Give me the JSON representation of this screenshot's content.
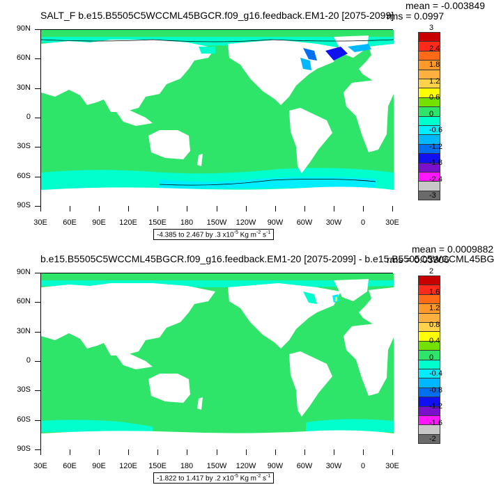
{
  "chart_data": [
    {
      "type": "heatmap",
      "projection": "cylindrical-equidistant",
      "title": "SALT_F b.e15.B5505C5WCCML45BGCR.f09_g16.feedback.EM1-20 [2075-2099]",
      "stats": {
        "mean": "mean = -0.003849",
        "rms": "rms = 0.0997"
      },
      "ylabels": [
        "90N",
        "60N",
        "30N",
        "0",
        "30S",
        "60S",
        "90S"
      ],
      "xlabels": [
        "30E",
        "60E",
        "90E",
        "120E",
        "150E",
        "180",
        "150W",
        "120W",
        "90W",
        "60W",
        "30W",
        "0",
        "30E"
      ],
      "range_text": "-4.385 to 2.467 by .3 x10",
      "range_exp": "-5",
      "units": "Kg m",
      "units_exp1": "-2",
      "units_tail": " s",
      "units_exp2": "-1",
      "colorbar": {
        "colors": [
          "#c80000",
          "#ff2a1a",
          "#ff6a18",
          "#ff9a2a",
          "#ffb040",
          "#ffd24a",
          "#ffff00",
          "#74e000",
          "#2ee56a",
          "#00ffcc",
          "#00eeff",
          "#00b8ff",
          "#0070f0",
          "#1010f0",
          "#7a10cc",
          "#ff18ff",
          "#c8c8c8",
          "#6a6a6a"
        ],
        "labels": [
          "3",
          "2.4",
          "1.8",
          "1.2",
          "0.6",
          "0",
          "-0.6",
          "-1.2",
          "-1.8",
          "-2.4",
          "-3"
        ],
        "cell_values": [
          3.3,
          2.85,
          2.55,
          2.25,
          1.95,
          1.65,
          1.35,
          1.05,
          0.75,
          0.45,
          0.15,
          -0.15,
          -0.45,
          -0.75,
          -1.05,
          -1.35,
          -1.65,
          -1.95
        ]
      },
      "dominant_value": "0 to 0.3 (ocean background)",
      "land_color": "#ffffff",
      "ocean_color": "#2ee56a"
    },
    {
      "type": "heatmap",
      "projection": "cylindrical-equidistant",
      "title": "b.e15.B5505C5WCCML45BGCR.f09_g16.feedback.EM1-20 [2075-2099] - b.e15.B5505C5WCCML45BG",
      "stats": {
        "mean": "mean = 0.0009882",
        "rms": "rms = 0.03306"
      },
      "ylabels": [
        "90N",
        "60N",
        "30N",
        "0",
        "30S",
        "60S",
        "90S"
      ],
      "xlabels": [
        "30E",
        "60E",
        "90E",
        "120E",
        "150E",
        "180",
        "150W",
        "120W",
        "90W",
        "60W",
        "30W",
        "0",
        "30E"
      ],
      "range_text": "-1.822 to 1.417 by .2 x10",
      "range_exp": "-5",
      "units": "Kg m",
      "units_exp1": "-2",
      "units_tail": " s",
      "units_exp2": "-1",
      "colorbar": {
        "colors": [
          "#c80000",
          "#ff2a1a",
          "#ff6a18",
          "#ff9a2a",
          "#ffb040",
          "#ffd24a",
          "#ffff00",
          "#74e000",
          "#2ee56a",
          "#00ffcc",
          "#00eeff",
          "#00b8ff",
          "#0070f0",
          "#1010f0",
          "#7a10cc",
          "#ff18ff",
          "#c8c8c8",
          "#6a6a6a"
        ],
        "labels": [
          "2",
          "1.6",
          "1.2",
          "0.8",
          "0.4",
          "0",
          "-0.4",
          "-0.8",
          "-1.2",
          "-1.6",
          "-2"
        ],
        "cell_values": [
          2.2,
          1.9,
          1.7,
          1.5,
          1.3,
          1.1,
          0.9,
          0.7,
          0.5,
          0.3,
          0.1,
          -0.1,
          -0.3,
          -0.5,
          -0.7,
          -0.9,
          -1.1,
          -1.3
        ]
      },
      "dominant_value": "0 to 0.2 (ocean background)",
      "land_color": "#ffffff",
      "ocean_color": "#2ee56a"
    }
  ]
}
